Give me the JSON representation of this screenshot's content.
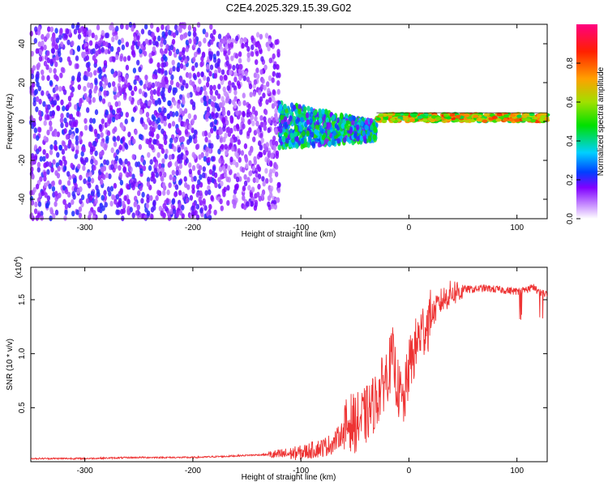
{
  "figure": {
    "title": "C2E4.2025.329.15.39.G02"
  },
  "chart_data": [
    {
      "type": "heatmap",
      "xlabel": "Height of straight line (km)",
      "ylabel": "Frequency (Hz)",
      "xlim": [
        -350,
        128
      ],
      "ylim": [
        -50,
        50
      ],
      "x_ticks": [
        -300,
        -200,
        -100,
        0,
        100
      ],
      "y_ticks": [
        -40,
        -20,
        0,
        20,
        40
      ],
      "colorbar": {
        "label": "Normalized spectral amplitude",
        "range": [
          0,
          1
        ],
        "ticks": [
          "0.0",
          "0.2",
          "0.4",
          "0.6",
          "0.8"
        ],
        "colors": [
          "#ffffff",
          "#c080ff",
          "#8000ff",
          "#0040ff",
          "#00d0ff",
          "#00e000",
          "#a0e000",
          "#ffa000",
          "#ff2000",
          "#ff0080"
        ]
      },
      "description_regions": [
        {
          "x_range": [
            -350,
            -175
          ],
          "freq_spread": 50,
          "amplitude": 0.15
        },
        {
          "x_range": [
            -175,
            -120
          ],
          "freq_spread": 45,
          "amplitude": 0.12
        },
        {
          "x_range": [
            -120,
            -30
          ],
          "freq_spread": 12,
          "amplitude": 0.35
        },
        {
          "x_range": [
            -30,
            128
          ],
          "freq_center": 2,
          "freq_spread": 2,
          "amplitude": 0.55
        }
      ]
    },
    {
      "type": "line",
      "xlabel": "Height of straight line (km)",
      "ylabel": "SNR (10 * v/v)",
      "y_multiplier": "(x10",
      "y_multiplier_exp": "4",
      "xlim": [
        -350,
        128
      ],
      "ylim": [
        0,
        1.8
      ],
      "x_ticks": [
        -300,
        -200,
        -100,
        0,
        100
      ],
      "y_ticks": [
        "0.5",
        "1.0",
        "1.5"
      ],
      "series": [
        {
          "color": "#ee3333",
          "x": [
            -350,
            -300,
            -250,
            -200,
            -170,
            -150,
            -120,
            -100,
            -80,
            -70,
            -60,
            -55,
            -50,
            -40,
            -30,
            -20,
            -15,
            -10,
            -5,
            0,
            5,
            10,
            20,
            30,
            40,
            50,
            60,
            70,
            80,
            90,
            100,
            110,
            115,
            120,
            128
          ],
          "y": [
            0.03,
            0.03,
            0.04,
            0.04,
            0.05,
            0.06,
            0.07,
            0.09,
            0.14,
            0.18,
            0.3,
            0.4,
            0.38,
            0.45,
            0.6,
            0.85,
            1.0,
            0.7,
            0.55,
            0.9,
            1.05,
            1.2,
            1.35,
            1.5,
            1.58,
            1.6,
            1.6,
            1.61,
            1.6,
            1.59,
            1.58,
            1.6,
            1.62,
            1.58,
            1.55
          ]
        }
      ]
    }
  ]
}
